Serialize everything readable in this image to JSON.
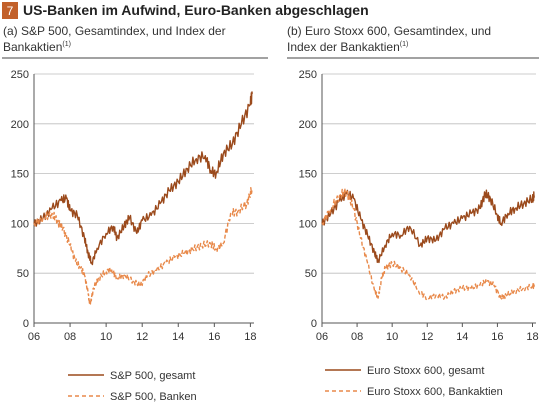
{
  "figure": {
    "number": "7",
    "title": "US-Banken im Aufwind, Euro-Banken abgeschlagen",
    "accent_color": "#c2602a"
  },
  "chart_data": [
    {
      "type": "line",
      "title_lines": [
        "(a) S&P 500, Gesamtindex, und Index der",
        "Bankaktien"
      ],
      "title_superscript": "(1)",
      "xlabel": "",
      "ylabel": "",
      "x_ticks": [
        "06",
        "08",
        "10",
        "12",
        "14",
        "16",
        "18"
      ],
      "y_ticks": [
        0,
        50,
        100,
        150,
        200,
        250
      ],
      "xlim": [
        2006,
        2018.2
      ],
      "ylim": [
        0,
        250
      ],
      "grid": true,
      "legend_position": "bottom",
      "series": [
        {
          "name": "S&P 500, gesamt",
          "style": "solid",
          "color": "#9b4a1c",
          "x": [
            2006.0,
            2006.5,
            2007.0,
            2007.5,
            2007.8,
            2008.0,
            2008.4,
            2008.8,
            2009.0,
            2009.2,
            2009.5,
            2010.0,
            2010.4,
            2010.6,
            2011.0,
            2011.3,
            2011.7,
            2012.0,
            2012.5,
            2013.0,
            2013.5,
            2014.0,
            2014.5,
            2015.0,
            2015.5,
            2015.8,
            2016.1,
            2016.5,
            2017.0,
            2017.5,
            2018.0,
            2018.1
          ],
          "y": [
            100,
            105,
            115,
            123,
            125,
            113,
            108,
            85,
            70,
            60,
            75,
            90,
            97,
            85,
            98,
            106,
            90,
            103,
            108,
            120,
            133,
            142,
            155,
            165,
            168,
            153,
            150,
            170,
            180,
            200,
            220,
            230
          ]
        },
        {
          "name": "S&P 500, Banken",
          "style": "dashed",
          "color": "#e8894a",
          "x": [
            2006.0,
            2006.5,
            2007.0,
            2007.3,
            2007.6,
            2008.0,
            2008.3,
            2008.6,
            2008.8,
            2009.0,
            2009.1,
            2009.3,
            2009.6,
            2010.0,
            2010.3,
            2010.6,
            2011.0,
            2011.5,
            2011.9,
            2012.3,
            2012.8,
            2013.3,
            2013.8,
            2014.3,
            2014.8,
            2015.3,
            2015.8,
            2016.1,
            2016.5,
            2016.9,
            2017.3,
            2017.8,
            2018.1
          ],
          "y": [
            100,
            105,
            110,
            102,
            95,
            78,
            62,
            55,
            48,
            30,
            18,
            35,
            45,
            52,
            54,
            45,
            48,
            42,
            38,
            48,
            53,
            60,
            66,
            70,
            74,
            78,
            80,
            74,
            80,
            110,
            112,
            120,
            135
          ]
        }
      ]
    },
    {
      "type": "line",
      "title_lines": [
        "(b) Euro Stoxx 600, Gesamtindex, und",
        "Index der Bankaktien"
      ],
      "title_superscript": "(1)",
      "xlabel": "",
      "ylabel": "",
      "x_ticks": [
        "06",
        "08",
        "10",
        "12",
        "14",
        "16",
        "18"
      ],
      "y_ticks": [
        0,
        50,
        100,
        150,
        200,
        250
      ],
      "xlim": [
        2006,
        2018.2
      ],
      "ylim": [
        0,
        250
      ],
      "grid": true,
      "legend_position": "bottom",
      "series": [
        {
          "name": "Euro Stoxx 600, gesamt",
          "style": "solid",
          "color": "#9b4a1c",
          "x": [
            2006.0,
            2006.5,
            2007.0,
            2007.4,
            2007.8,
            2008.2,
            2008.6,
            2009.0,
            2009.2,
            2009.6,
            2010.0,
            2010.5,
            2011.0,
            2011.6,
            2012.0,
            2012.5,
            2013.0,
            2013.5,
            2014.0,
            2014.5,
            2015.0,
            2015.3,
            2015.6,
            2016.0,
            2016.2,
            2016.6,
            2017.0,
            2017.5,
            2018.0,
            2018.1
          ],
          "y": [
            100,
            110,
            123,
            130,
            125,
            105,
            88,
            70,
            62,
            78,
            90,
            88,
            97,
            78,
            85,
            83,
            95,
            100,
            105,
            110,
            115,
            130,
            125,
            108,
            100,
            110,
            115,
            120,
            125,
            128
          ]
        },
        {
          "name": "Euro Stoxx 600, Bankaktien",
          "style": "dashed",
          "color": "#e8894a",
          "x": [
            2006.0,
            2006.5,
            2007.0,
            2007.4,
            2007.8,
            2008.2,
            2008.6,
            2009.0,
            2009.2,
            2009.4,
            2009.6,
            2010.0,
            2010.5,
            2011.0,
            2011.5,
            2012.0,
            2012.5,
            2013.0,
            2013.5,
            2014.0,
            2014.5,
            2015.0,
            2015.4,
            2015.8,
            2016.2,
            2016.5,
            2017.0,
            2017.5,
            2018.0,
            2018.1
          ],
          "y": [
            100,
            115,
            128,
            132,
            115,
            85,
            60,
            32,
            25,
            45,
            55,
            60,
            55,
            48,
            32,
            25,
            28,
            26,
            32,
            35,
            35,
            38,
            42,
            38,
            25,
            28,
            32,
            35,
            37,
            38
          ]
        }
      ]
    }
  ]
}
